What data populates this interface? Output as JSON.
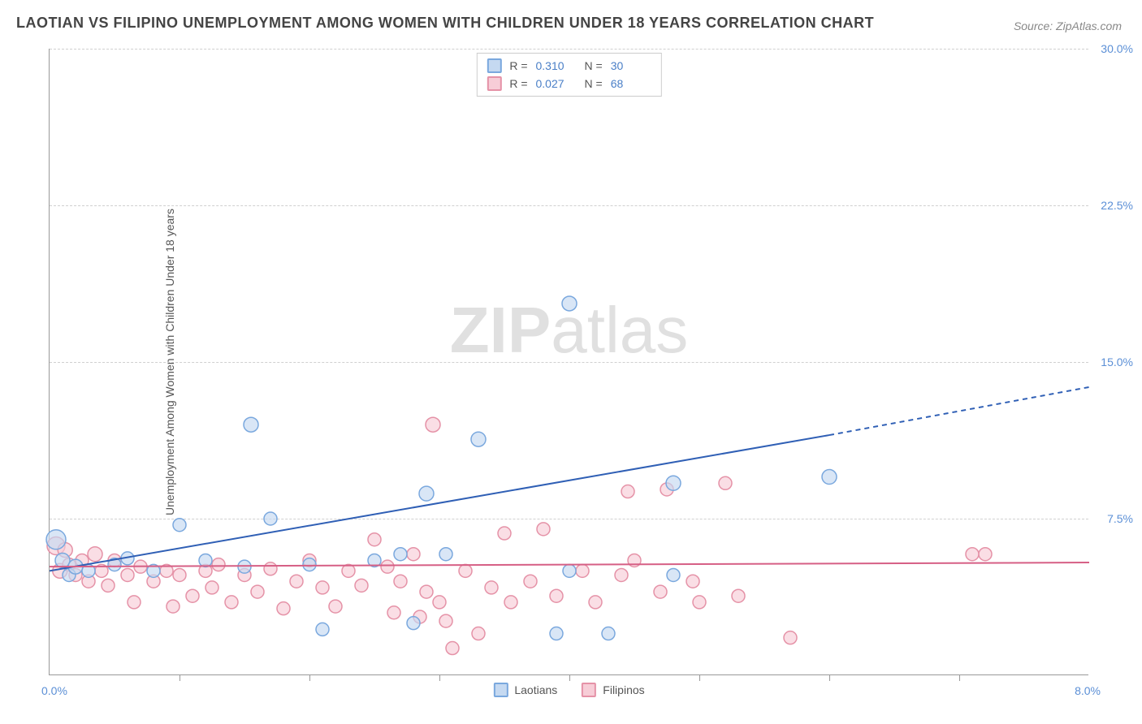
{
  "title": "LAOTIAN VS FILIPINO UNEMPLOYMENT AMONG WOMEN WITH CHILDREN UNDER 18 YEARS CORRELATION CHART",
  "source_label": "Source: ZipAtlas.com",
  "y_axis_label": "Unemployment Among Women with Children Under 18 years",
  "watermark_bold": "ZIP",
  "watermark_rest": "atlas",
  "chart": {
    "type": "scatter",
    "xlim": [
      0,
      8
    ],
    "ylim": [
      0,
      30
    ],
    "x_origin_label": "0.0%",
    "x_max_label": "8.0%",
    "x_tick_positions": [
      1,
      2,
      3,
      4,
      5,
      6,
      7
    ],
    "y_ticks": [
      {
        "value": 7.5,
        "label": "7.5%"
      },
      {
        "value": 15.0,
        "label": "15.0%"
      },
      {
        "value": 22.5,
        "label": "22.5%"
      },
      {
        "value": 30.0,
        "label": "30.0%"
      }
    ],
    "background_color": "#ffffff",
    "grid_color": "#d0d0d0",
    "series": [
      {
        "name": "Laotians",
        "fill_color": "#c5d9f1",
        "stroke_color": "#7aa8de",
        "r_value": "0.310",
        "n_value": "30",
        "trend": {
          "x1": 0,
          "y1": 5.0,
          "x2": 6.0,
          "y2": 11.5,
          "x2_extrap": 8.0,
          "y2_extrap": 13.8,
          "color": "#2f5fb5",
          "width": 2
        },
        "points": [
          {
            "x": 0.05,
            "y": 6.5,
            "r": 12
          },
          {
            "x": 0.1,
            "y": 5.5,
            "r": 9
          },
          {
            "x": 0.15,
            "y": 4.8,
            "r": 8
          },
          {
            "x": 0.2,
            "y": 5.2,
            "r": 9
          },
          {
            "x": 0.3,
            "y": 5.0,
            "r": 8
          },
          {
            "x": 0.5,
            "y": 5.3,
            "r": 8
          },
          {
            "x": 0.6,
            "y": 5.6,
            "r": 8
          },
          {
            "x": 0.8,
            "y": 5.0,
            "r": 8
          },
          {
            "x": 1.0,
            "y": 7.2,
            "r": 8
          },
          {
            "x": 1.2,
            "y": 5.5,
            "r": 8
          },
          {
            "x": 1.5,
            "y": 5.2,
            "r": 8
          },
          {
            "x": 1.55,
            "y": 12.0,
            "r": 9
          },
          {
            "x": 1.7,
            "y": 7.5,
            "r": 8
          },
          {
            "x": 2.0,
            "y": 5.3,
            "r": 8
          },
          {
            "x": 2.1,
            "y": 2.2,
            "r": 8
          },
          {
            "x": 2.5,
            "y": 5.5,
            "r": 8
          },
          {
            "x": 2.7,
            "y": 5.8,
            "r": 8
          },
          {
            "x": 2.8,
            "y": 2.5,
            "r": 8
          },
          {
            "x": 2.9,
            "y": 8.7,
            "r": 9
          },
          {
            "x": 3.05,
            "y": 5.8,
            "r": 8
          },
          {
            "x": 3.3,
            "y": 11.3,
            "r": 9
          },
          {
            "x": 3.9,
            "y": 2.0,
            "r": 8
          },
          {
            "x": 4.0,
            "y": 17.8,
            "r": 9
          },
          {
            "x": 4.0,
            "y": 5.0,
            "r": 8
          },
          {
            "x": 4.3,
            "y": 2.0,
            "r": 8
          },
          {
            "x": 4.8,
            "y": 9.2,
            "r": 9
          },
          {
            "x": 4.8,
            "y": 4.8,
            "r": 8
          },
          {
            "x": 6.0,
            "y": 9.5,
            "r": 9
          }
        ]
      },
      {
        "name": "Filipinos",
        "fill_color": "#f7cdd7",
        "stroke_color": "#e592a7",
        "r_value": "0.027",
        "n_value": "68",
        "trend": {
          "x1": 0,
          "y1": 5.2,
          "x2": 8.0,
          "y2": 5.4,
          "color": "#d65f85",
          "width": 2
        },
        "points": [
          {
            "x": 0.05,
            "y": 6.2,
            "r": 11
          },
          {
            "x": 0.08,
            "y": 5.0,
            "r": 9
          },
          {
            "x": 0.12,
            "y": 6.0,
            "r": 9
          },
          {
            "x": 0.15,
            "y": 5.3,
            "r": 8
          },
          {
            "x": 0.2,
            "y": 4.8,
            "r": 8
          },
          {
            "x": 0.25,
            "y": 5.5,
            "r": 8
          },
          {
            "x": 0.3,
            "y": 4.5,
            "r": 8
          },
          {
            "x": 0.35,
            "y": 5.8,
            "r": 9
          },
          {
            "x": 0.4,
            "y": 5.0,
            "r": 8
          },
          {
            "x": 0.45,
            "y": 4.3,
            "r": 8
          },
          {
            "x": 0.5,
            "y": 5.5,
            "r": 8
          },
          {
            "x": 0.6,
            "y": 4.8,
            "r": 8
          },
          {
            "x": 0.65,
            "y": 3.5,
            "r": 8
          },
          {
            "x": 0.7,
            "y": 5.2,
            "r": 8
          },
          {
            "x": 0.8,
            "y": 4.5,
            "r": 8
          },
          {
            "x": 0.9,
            "y": 5.0,
            "r": 8
          },
          {
            "x": 0.95,
            "y": 3.3,
            "r": 8
          },
          {
            "x": 1.0,
            "y": 4.8,
            "r": 8
          },
          {
            "x": 1.1,
            "y": 3.8,
            "r": 8
          },
          {
            "x": 1.2,
            "y": 5.0,
            "r": 8
          },
          {
            "x": 1.25,
            "y": 4.2,
            "r": 8
          },
          {
            "x": 1.3,
            "y": 5.3,
            "r": 8
          },
          {
            "x": 1.4,
            "y": 3.5,
            "r": 8
          },
          {
            "x": 1.5,
            "y": 4.8,
            "r": 8
          },
          {
            "x": 1.6,
            "y": 4.0,
            "r": 8
          },
          {
            "x": 1.7,
            "y": 5.1,
            "r": 8
          },
          {
            "x": 1.8,
            "y": 3.2,
            "r": 8
          },
          {
            "x": 1.9,
            "y": 4.5,
            "r": 8
          },
          {
            "x": 2.0,
            "y": 5.5,
            "r": 8
          },
          {
            "x": 2.1,
            "y": 4.2,
            "r": 8
          },
          {
            "x": 2.2,
            "y": 3.3,
            "r": 8
          },
          {
            "x": 2.3,
            "y": 5.0,
            "r": 8
          },
          {
            "x": 2.4,
            "y": 4.3,
            "r": 8
          },
          {
            "x": 2.5,
            "y": 6.5,
            "r": 8
          },
          {
            "x": 2.6,
            "y": 5.2,
            "r": 8
          },
          {
            "x": 2.65,
            "y": 3.0,
            "r": 8
          },
          {
            "x": 2.7,
            "y": 4.5,
            "r": 8
          },
          {
            "x": 2.8,
            "y": 5.8,
            "r": 8
          },
          {
            "x": 2.85,
            "y": 2.8,
            "r": 8
          },
          {
            "x": 2.9,
            "y": 4.0,
            "r": 8
          },
          {
            "x": 2.95,
            "y": 12.0,
            "r": 9
          },
          {
            "x": 3.0,
            "y": 3.5,
            "r": 8
          },
          {
            "x": 3.05,
            "y": 2.6,
            "r": 8
          },
          {
            "x": 3.1,
            "y": 1.3,
            "r": 8
          },
          {
            "x": 3.2,
            "y": 5.0,
            "r": 8
          },
          {
            "x": 3.3,
            "y": 2.0,
            "r": 8
          },
          {
            "x": 3.4,
            "y": 4.2,
            "r": 8
          },
          {
            "x": 3.5,
            "y": 6.8,
            "r": 8
          },
          {
            "x": 3.55,
            "y": 3.5,
            "r": 8
          },
          {
            "x": 3.7,
            "y": 4.5,
            "r": 8
          },
          {
            "x": 3.8,
            "y": 7.0,
            "r": 8
          },
          {
            "x": 3.9,
            "y": 3.8,
            "r": 8
          },
          {
            "x": 4.1,
            "y": 5.0,
            "r": 8
          },
          {
            "x": 4.2,
            "y": 3.5,
            "r": 8
          },
          {
            "x": 4.4,
            "y": 4.8,
            "r": 8
          },
          {
            "x": 4.45,
            "y": 8.8,
            "r": 8
          },
          {
            "x": 4.5,
            "y": 5.5,
            "r": 8
          },
          {
            "x": 4.7,
            "y": 4.0,
            "r": 8
          },
          {
            "x": 4.75,
            "y": 8.9,
            "r": 8
          },
          {
            "x": 4.95,
            "y": 4.5,
            "r": 8
          },
          {
            "x": 5.0,
            "y": 3.5,
            "r": 8
          },
          {
            "x": 5.2,
            "y": 9.2,
            "r": 8
          },
          {
            "x": 5.3,
            "y": 3.8,
            "r": 8
          },
          {
            "x": 5.7,
            "y": 1.8,
            "r": 8
          },
          {
            "x": 7.1,
            "y": 5.8,
            "r": 8
          },
          {
            "x": 7.2,
            "y": 5.8,
            "r": 8
          }
        ]
      }
    ],
    "legend_items": [
      {
        "name": "Laotians",
        "fill": "#c5d9f1",
        "stroke": "#7aa8de"
      },
      {
        "name": "Filipinos",
        "fill": "#f7cdd7",
        "stroke": "#e592a7"
      }
    ]
  }
}
